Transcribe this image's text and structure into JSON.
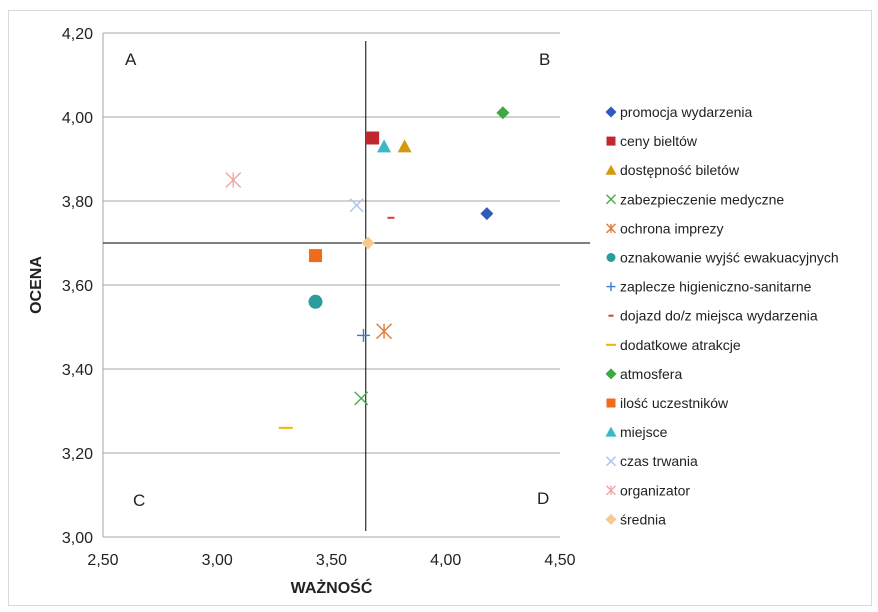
{
  "chart_data": {
    "type": "scatter",
    "xlabel": "WAŻNOŚĆ",
    "ylabel": "OCENA",
    "xlim": [
      2.5,
      4.5
    ],
    "ylim": [
      3.0,
      4.2
    ],
    "x_ticks": [
      "2,50",
      "3,00",
      "3,50",
      "4,00",
      "4,50"
    ],
    "y_ticks": [
      "3,00",
      "3,20",
      "3,40",
      "3,60",
      "3,80",
      "4,00",
      "4,20"
    ],
    "grid": "horizontal",
    "legend_position": "right",
    "reference_lines": {
      "x": 3.65,
      "y": 3.7
    },
    "quadrant_labels": {
      "top_left": "A",
      "top_right": "B",
      "bottom_left": "C",
      "bottom_right": "D"
    },
    "series": [
      {
        "name": "promocja wydarzenia",
        "marker": "diamond",
        "color": "#2e5bbd",
        "x": 4.18,
        "y": 3.77
      },
      {
        "name": "ceny  bieltów",
        "marker": "square",
        "color": "#c0282d",
        "x": 3.68,
        "y": 3.95
      },
      {
        "name": "dostępność biletów",
        "marker": "triangle",
        "color": "#d49a0c",
        "x": 3.82,
        "y": 3.93
      },
      {
        "name": "zabezpieczenie medyczne",
        "marker": "x",
        "color": "#4aa84a",
        "x": 3.63,
        "y": 3.33
      },
      {
        "name": "ochrona imprezy",
        "marker": "asterisk",
        "color": "#e07b39",
        "x": 3.73,
        "y": 3.49
      },
      {
        "name": "oznakowanie wyjść ewakuacyjnych",
        "marker": "circle",
        "color": "#2a9d9a",
        "x": 3.43,
        "y": 3.56
      },
      {
        "name": "zaplecze higieniczno-sanitarne",
        "marker": "plus",
        "color": "#3a7fd5",
        "x": 3.64,
        "y": 3.48
      },
      {
        "name": "dojazd do/z miejsca wydarzenia",
        "marker": "dash",
        "color": "#e0393a",
        "x": 3.76,
        "y": 3.76
      },
      {
        "name": "dodatkowe atrakcje",
        "marker": "dash",
        "color": "#f0b400",
        "x": 3.3,
        "y": 3.26
      },
      {
        "name": "atmosfera",
        "marker": "diamond",
        "color": "#3ea845",
        "x": 4.25,
        "y": 4.01
      },
      {
        "name": "ilość uczestników",
        "marker": "square",
        "color": "#f26b1a",
        "x": 3.43,
        "y": 3.67
      },
      {
        "name": "miejsce",
        "marker": "triangle",
        "color": "#39b9c7",
        "x": 3.73,
        "y": 3.93
      },
      {
        "name": "czas trwania",
        "marker": "x",
        "color": "#a9c4f0",
        "x": 3.61,
        "y": 3.79
      },
      {
        "name": "organizator",
        "marker": "asterisk",
        "color": "#f2a5a5",
        "x": 3.07,
        "y": 3.85
      },
      {
        "name": "średnia",
        "marker": "diamond",
        "color": "#f7c98f",
        "x": 3.66,
        "y": 3.7
      }
    ]
  }
}
